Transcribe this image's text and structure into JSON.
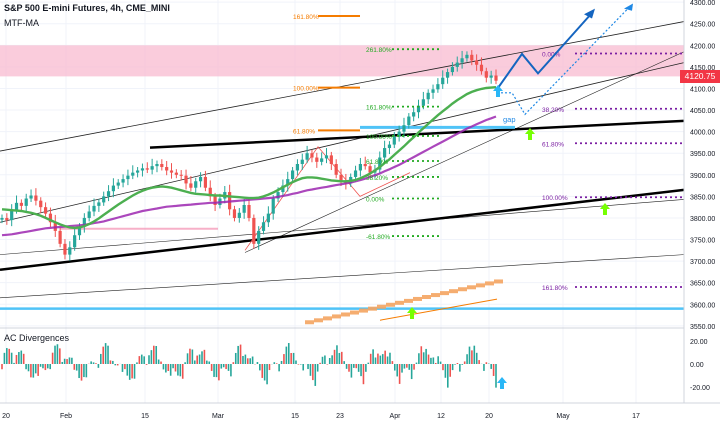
{
  "header": {
    "title": "S&P 500 E-mini Futures, 4h, CME_MINI",
    "indicator": "MTF-MA"
  },
  "subpanel": {
    "title": "AC Divergences"
  },
  "price_badge": "4120.75",
  "colors": {
    "bull": "#26a69a",
    "bear": "#ef5350",
    "ma_fast": "#4caf50",
    "ma_slow": "#9c27b0",
    "support": "#000000",
    "resistance_zone": "#f8bbd0",
    "fib_green": "#22aa22",
    "fib_orange": "#f57c00",
    "fib_purple": "#7b1fa2",
    "projection": "#1565c0",
    "arrow_green": "#76ff03",
    "arrow_cyan": "#29b6f6",
    "level_cyan": "#4fc3f7"
  },
  "chart_data": [
    {
      "type": "candlestick",
      "name": "main",
      "x_ticks": [
        "20",
        "Feb",
        "15",
        "Mar",
        "15",
        "23",
        "Apr",
        "12",
        "20",
        "May",
        "17"
      ],
      "y_ticks": [
        "4300.00",
        "4250.00",
        "4200.00",
        "4150.00",
        "4100.00",
        "4050.00",
        "4000.00",
        "3950.00",
        "3900.00",
        "3850.00",
        "3800.00",
        "3750.00",
        "3700.00",
        "3650.00",
        "3600.00",
        "3550.00"
      ],
      "ylim": [
        3545,
        4305
      ],
      "close": [
        3800,
        3795,
        3818,
        3835,
        3828,
        3845,
        3852,
        3840,
        3825,
        3810,
        3790,
        3770,
        3740,
        3715,
        3732,
        3760,
        3780,
        3800,
        3815,
        3828,
        3836,
        3850,
        3862,
        3875,
        3882,
        3890,
        3898,
        3905,
        3910,
        3915,
        3912,
        3920,
        3925,
        3918,
        3910,
        3905,
        3900,
        3898,
        3880,
        3870,
        3885,
        3895,
        3870,
        3850,
        3830,
        3845,
        3860,
        3820,
        3800,
        3812,
        3830,
        3800,
        3740,
        3770,
        3790,
        3810,
        3845,
        3860,
        3875,
        3890,
        3910,
        3925,
        3935,
        3950,
        3940,
        3930,
        3938,
        3945,
        3925,
        3900,
        3885,
        3880,
        3895,
        3910,
        3925,
        3920,
        3905,
        3912,
        3940,
        3962,
        3970,
        3988,
        4000,
        4015,
        4035,
        4045,
        4060,
        4075,
        4090,
        4098,
        4110,
        4125,
        4138,
        4150,
        4160,
        4170,
        4178,
        4165,
        4155,
        4140,
        4125,
        4130,
        4118
      ],
      "ma_fast": [
        3820,
        3819,
        3818,
        3817,
        3816,
        3814,
        3812,
        3809,
        3805,
        3800,
        3795,
        3790,
        3785,
        3781,
        3778,
        3777,
        3778,
        3781,
        3786,
        3792,
        3799,
        3807,
        3815,
        3823,
        3831,
        3838,
        3845,
        3852,
        3858,
        3863,
        3867,
        3870,
        3872,
        3873,
        3872,
        3870,
        3867,
        3864,
        3861,
        3858,
        3856,
        3855,
        3854,
        3853,
        3852,
        3852,
        3851,
        3850,
        3849,
        3848,
        3847,
        3846,
        3846,
        3847,
        3850,
        3854,
        3859,
        3865,
        3871,
        3877,
        3883,
        3888,
        3892,
        3894,
        3894,
        3893,
        3891,
        3889,
        3887,
        3886,
        3885,
        3885,
        3886,
        3888,
        3892,
        3897,
        3903,
        3910,
        3918,
        3927,
        3936,
        3946,
        3956,
        3966,
        3977,
        3987,
        3998,
        4008,
        4018,
        4028,
        4038,
        4047,
        4056,
        4065,
        4073,
        4080,
        4087,
        4092,
        4096,
        4099,
        4101,
        4102,
        4103
      ],
      "ma_slow": [
        3760,
        3761,
        3762,
        3764,
        3766,
        3768,
        3770,
        3772,
        3774,
        3776,
        3777,
        3778,
        3779,
        3780,
        3781,
        3782,
        3783,
        3784,
        3786,
        3788,
        3790,
        3792,
        3795,
        3798,
        3801,
        3804,
        3807,
        3810,
        3813,
        3816,
        3818,
        3820,
        3822,
        3824,
        3826,
        3827,
        3828,
        3829,
        3830,
        3831,
        3832,
        3833,
        3834,
        3835,
        3835,
        3836,
        3837,
        3838,
        3839,
        3840,
        3841,
        3842,
        3843,
        3844,
        3845,
        3846,
        3847,
        3849,
        3851,
        3853,
        3856,
        3858,
        3861,
        3864,
        3866,
        3868,
        3870,
        3872,
        3874,
        3876,
        3878,
        3880,
        3882,
        3885,
        3888,
        3891,
        3895,
        3899,
        3903,
        3908,
        3913,
        3918,
        3923,
        3929,
        3935,
        3941,
        3947,
        3953,
        3959,
        3965,
        3971,
        3977,
        3983,
        3989,
        3995,
        4001,
        4007,
        4012,
        4017,
        4022,
        4027,
        4031,
        4035
      ],
      "levels": [
        {
          "label": "161.80%",
          "value": 4268,
          "color": "#f57c00"
        },
        {
          "label": "261.80%",
          "value": 4191,
          "color": "#22aa22"
        },
        {
          "label": "100.00%",
          "value": 4102,
          "color": "#f57c00"
        },
        {
          "label": "161.80%",
          "value": 4058,
          "color": "#22aa22"
        },
        {
          "label": "61.80%",
          "value": 4003,
          "color": "#f57c00"
        },
        {
          "label": "100.00%",
          "value": 3990,
          "color": "#22aa22"
        },
        {
          "label": "61.80%",
          "value": 3932,
          "color": "#22aa22"
        },
        {
          "label": "38.20%",
          "value": 3895,
          "color": "#22aa22"
        },
        {
          "label": "0.00%",
          "value": 3845,
          "color": "#22aa22"
        },
        {
          "label": "-61.80%",
          "value": 3758,
          "color": "#22aa22"
        },
        {
          "label": "0.00%",
          "value": 4181,
          "color": "#7b1fa2"
        },
        {
          "label": "38.20%",
          "value": 4053,
          "color": "#7b1fa2"
        },
        {
          "label": "61.80%",
          "value": 3973,
          "color": "#7b1fa2"
        },
        {
          "label": "100.00%",
          "value": 3848,
          "color": "#7b1fa2"
        },
        {
          "label": "161.80%",
          "value": 3640,
          "color": "#7b1fa2"
        }
      ],
      "annotations": [
        "gap"
      ],
      "resistance_zone": [
        4128,
        4200
      ]
    },
    {
      "type": "bar",
      "name": "AC Divergences",
      "y_ticks": [
        "20.00",
        "0.00",
        "-20.00"
      ],
      "ylim": [
        -30,
        30
      ]
    }
  ],
  "x_axis_ticks": [
    "20",
    "Feb",
    "15",
    "Mar",
    "15",
    "23",
    "Apr",
    "12",
    "20",
    "May",
    "17"
  ]
}
